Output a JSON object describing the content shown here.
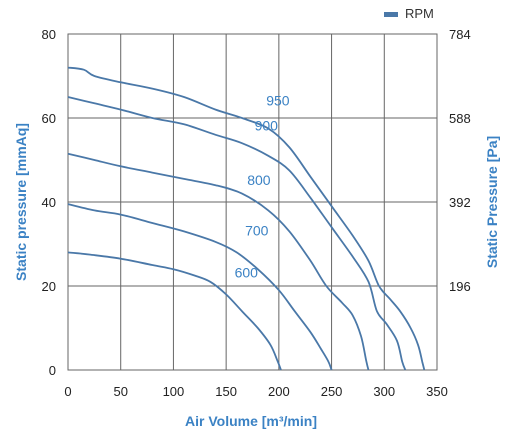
{
  "chart_data": {
    "type": "line",
    "title": "",
    "xlabel": "Air Volume [m³/min]",
    "ylabel": "Static pressure [mmAq]",
    "y2label": "Static Pressure [Pa]",
    "xlim": [
      0,
      350
    ],
    "ylim": [
      0,
      80
    ],
    "x_ticks": [
      "0",
      "50",
      "100",
      "150",
      "200",
      "250",
      "300",
      "350"
    ],
    "y_ticks": [
      "0",
      "20",
      "40",
      "60",
      "80"
    ],
    "y2_ticks": [
      {
        "at": 20,
        "label": "196"
      },
      {
        "at": 40,
        "label": "392"
      },
      {
        "at": 60,
        "label": "588"
      },
      {
        "at": 80,
        "label": "784"
      }
    ],
    "grid": true,
    "legend": {
      "label": "RPM",
      "position": "top-right"
    },
    "colors": {
      "curve": "#4a78a8",
      "label": "#3b82c4",
      "axis_title": "#3b82c4",
      "grid": "#666666"
    },
    "series": [
      {
        "name": "600",
        "label_at": [
          158,
          22
        ],
        "points": [
          [
            0,
            28
          ],
          [
            20,
            27.5
          ],
          [
            50,
            26.5
          ],
          [
            80,
            25
          ],
          [
            100,
            24
          ],
          [
            120,
            22.5
          ],
          [
            135,
            21
          ],
          [
            150,
            18
          ],
          [
            165,
            14
          ],
          [
            180,
            10
          ],
          [
            192,
            6
          ],
          [
            199,
            2
          ],
          [
            202,
            0
          ]
        ]
      },
      {
        "name": "700",
        "label_at": [
          168,
          32
        ],
        "points": [
          [
            0,
            39.5
          ],
          [
            25,
            38
          ],
          [
            50,
            37
          ],
          [
            80,
            35
          ],
          [
            110,
            33
          ],
          [
            140,
            30.5
          ],
          [
            160,
            28
          ],
          [
            180,
            24
          ],
          [
            200,
            19
          ],
          [
            215,
            14
          ],
          [
            230,
            9
          ],
          [
            240,
            5
          ],
          [
            247,
            2
          ],
          [
            250,
            0
          ]
        ]
      },
      {
        "name": "800",
        "label_at": [
          170,
          44
        ],
        "points": [
          [
            0,
            51.5
          ],
          [
            25,
            50
          ],
          [
            50,
            48.5
          ],
          [
            80,
            47
          ],
          [
            110,
            45.5
          ],
          [
            140,
            44
          ],
          [
            165,
            42
          ],
          [
            190,
            38
          ],
          [
            210,
            33
          ],
          [
            230,
            26
          ],
          [
            245,
            20
          ],
          [
            260,
            16
          ],
          [
            270,
            13
          ],
          [
            278,
            8
          ],
          [
            283,
            2
          ],
          [
            285,
            0
          ]
        ]
      },
      {
        "name": "900",
        "label_at": [
          177,
          57
        ],
        "points": [
          [
            0,
            65
          ],
          [
            25,
            63.5
          ],
          [
            50,
            62
          ],
          [
            80,
            60
          ],
          [
            110,
            58.5
          ],
          [
            140,
            56
          ],
          [
            165,
            54
          ],
          [
            190,
            51
          ],
          [
            210,
            47.5
          ],
          [
            230,
            41
          ],
          [
            250,
            34
          ],
          [
            270,
            27
          ],
          [
            285,
            21
          ],
          [
            293,
            14
          ],
          [
            302,
            11
          ],
          [
            312,
            7
          ],
          [
            317,
            2
          ],
          [
            320,
            0
          ]
        ]
      },
      {
        "name": "950",
        "label_at": [
          188,
          63
        ],
        "points": [
          [
            0,
            72
          ],
          [
            15,
            71.5
          ],
          [
            25,
            70
          ],
          [
            50,
            68.5
          ],
          [
            80,
            67
          ],
          [
            110,
            65
          ],
          [
            140,
            62
          ],
          [
            165,
            60
          ],
          [
            190,
            57.5
          ],
          [
            210,
            53
          ],
          [
            230,
            46
          ],
          [
            250,
            39
          ],
          [
            270,
            32
          ],
          [
            285,
            26
          ],
          [
            295,
            20
          ],
          [
            305,
            17
          ],
          [
            315,
            14
          ],
          [
            325,
            10
          ],
          [
            332,
            6
          ],
          [
            336,
            2
          ],
          [
            338,
            0
          ]
        ]
      }
    ]
  }
}
